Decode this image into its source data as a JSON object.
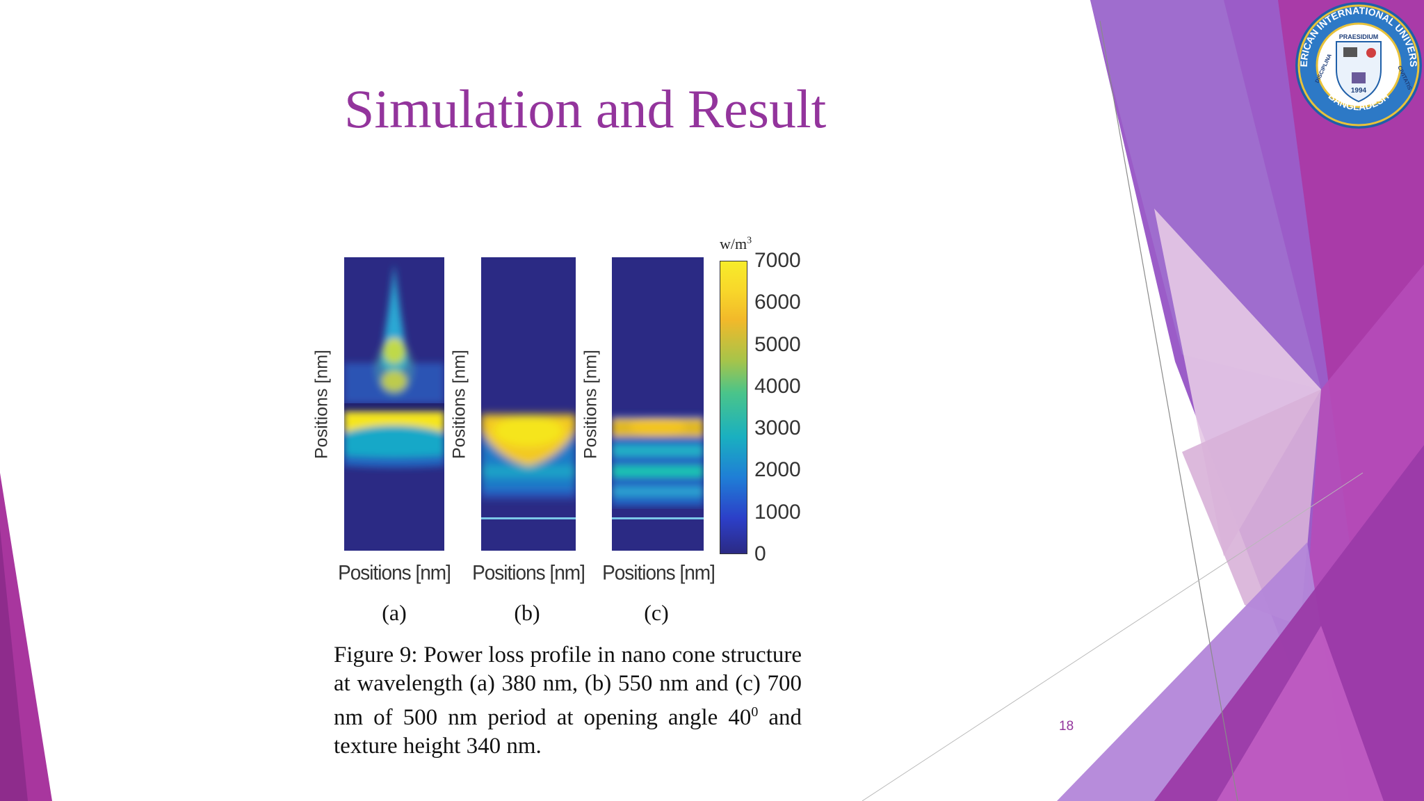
{
  "slide": {
    "title": "Simulation and Result",
    "page_number": "18"
  },
  "figure": {
    "panels": [
      {
        "id": "a",
        "sublabel": "(a)",
        "ylabel": "Positions [nm]",
        "xlabel": "Positions [nm]"
      },
      {
        "id": "b",
        "sublabel": "(b)",
        "ylabel": "Positions [nm]",
        "xlabel": "Positions [nm]"
      },
      {
        "id": "c",
        "sublabel": "(c)",
        "ylabel": "Positions [nm]",
        "xlabel": "Positions [nm]"
      }
    ],
    "colorbar": {
      "unit": "w/m",
      "unit_exponent": "3",
      "ticks": [
        "7000",
        "6000",
        "5000",
        "4000",
        "3000",
        "2000",
        "1000",
        "0"
      ],
      "range": [
        0,
        7000
      ]
    },
    "caption": {
      "text_before": "Figure 9: Power loss profile in nano cone structure at wavelength (a) 380 nm, (b) 550 nm and (c) 700 nm of 500 nm period at opening angle 40",
      "superscript": "0",
      "text_after": " and texture height 340 nm."
    }
  },
  "logo": {
    "top_text": "AMERICAN INTERNATIONAL UNIVERSITY",
    "bottom_text": "BANGLADESH",
    "left_text": "DISCIPLINA",
    "right_text": "CIVITATIS",
    "motto": "PRAESIDIUM",
    "year": "1994"
  },
  "colors": {
    "title": "#93349c",
    "heat_low": "#2b2a84",
    "heat_high": "#f5e51b"
  }
}
